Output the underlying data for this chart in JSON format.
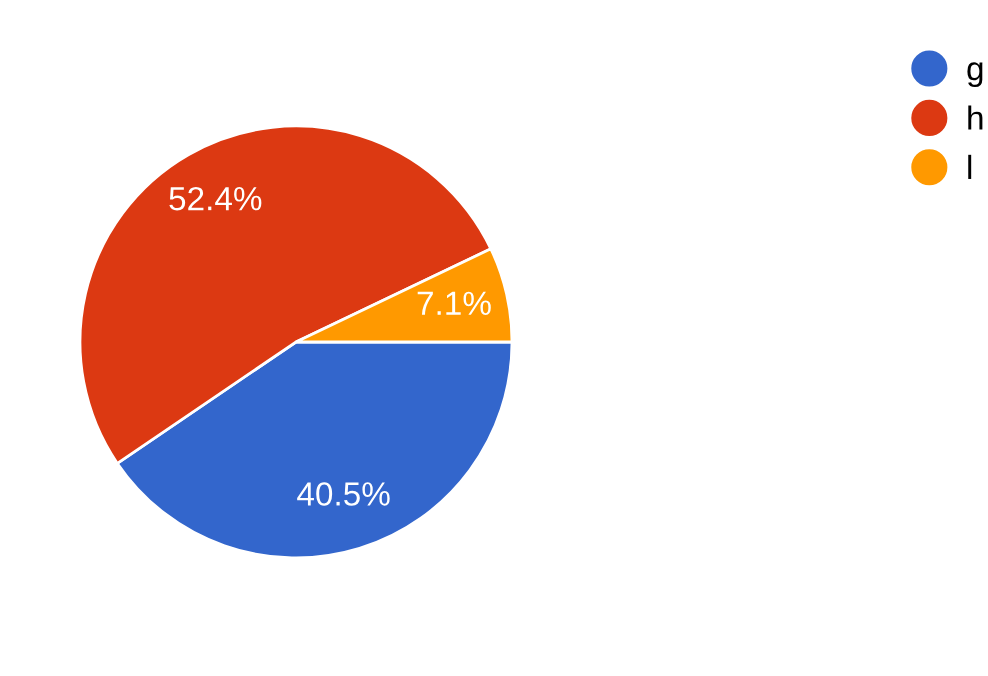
{
  "chart_data": {
    "type": "pie",
    "categories": [
      "g",
      "h",
      "l"
    ],
    "values": [
      40.5,
      52.4,
      7.1
    ],
    "colors": [
      "#3366cc",
      "#dc3912",
      "#ff9900"
    ],
    "value_labels": [
      "40.5%",
      "52.4%",
      "7.1%"
    ],
    "legend": "top right"
  }
}
